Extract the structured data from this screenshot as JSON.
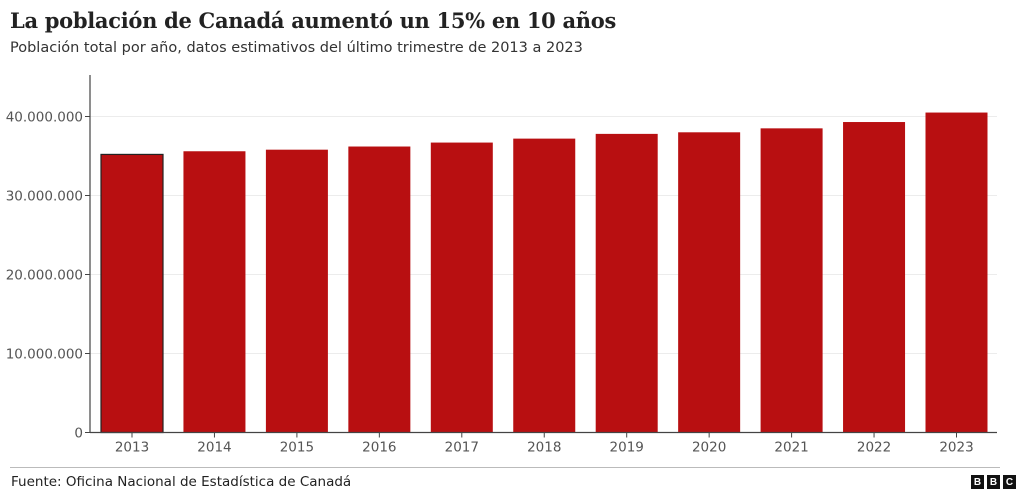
{
  "chart_data": {
    "type": "bar",
    "title": "La población de Canadá aumentó un 15% en 10 años",
    "subtitle": "Población total por año, datos estimativos del último trimestre de 2013 a 2023",
    "xlabel": "",
    "ylabel": "",
    "categories": [
      "2013",
      "2014",
      "2015",
      "2016",
      "2017",
      "2018",
      "2019",
      "2020",
      "2021",
      "2022",
      "2023"
    ],
    "values": [
      35200000,
      35600000,
      35800000,
      36200000,
      36700000,
      37200000,
      37800000,
      38000000,
      38500000,
      39300000,
      40500000
    ],
    "ylim": [
      0,
      44000000
    ],
    "yticks": [
      0,
      10000000,
      20000000,
      30000000,
      40000000
    ],
    "ytick_labels": [
      "0",
      "10.000.000",
      "20.000.000",
      "30.000.000",
      "40.000.000"
    ],
    "grid": true,
    "bar_color": "#b80f11",
    "highlight_category": "2013",
    "highlight_stroke": "#222222"
  },
  "footer": {
    "source": "Fuente: Oficina Nacional de Estadística de Canadá",
    "logo": [
      "B",
      "B",
      "C"
    ]
  }
}
